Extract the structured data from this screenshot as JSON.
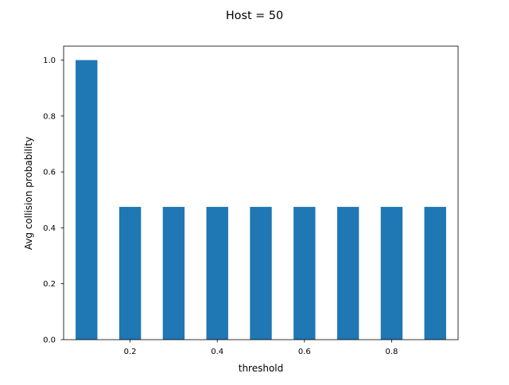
{
  "chart_data": {
    "type": "bar",
    "title": "Host = 50",
    "xlabel": "threshold",
    "ylabel": "Avg collision probability",
    "x": [
      0.1,
      0.2,
      0.3,
      0.4,
      0.5,
      0.6,
      0.7,
      0.8,
      0.9
    ],
    "values": [
      1.0,
      0.475,
      0.475,
      0.475,
      0.475,
      0.475,
      0.475,
      0.475,
      0.475
    ],
    "bar_width": 0.05,
    "xlim": [
      0.0475,
      0.9525
    ],
    "ylim": [
      0.0,
      1.05
    ],
    "xticks": [
      0.2,
      0.4,
      0.6,
      0.8
    ],
    "xtick_labels": [
      "0.2",
      "0.4",
      "0.6",
      "0.8"
    ],
    "yticks": [
      0.0,
      0.2,
      0.4,
      0.6,
      0.8,
      1.0
    ],
    "ytick_labels": [
      "0.0",
      "0.2",
      "0.4",
      "0.6",
      "0.8",
      "1.0"
    ],
    "bar_color": "#1f77b4",
    "grid": false,
    "legend": "none"
  }
}
